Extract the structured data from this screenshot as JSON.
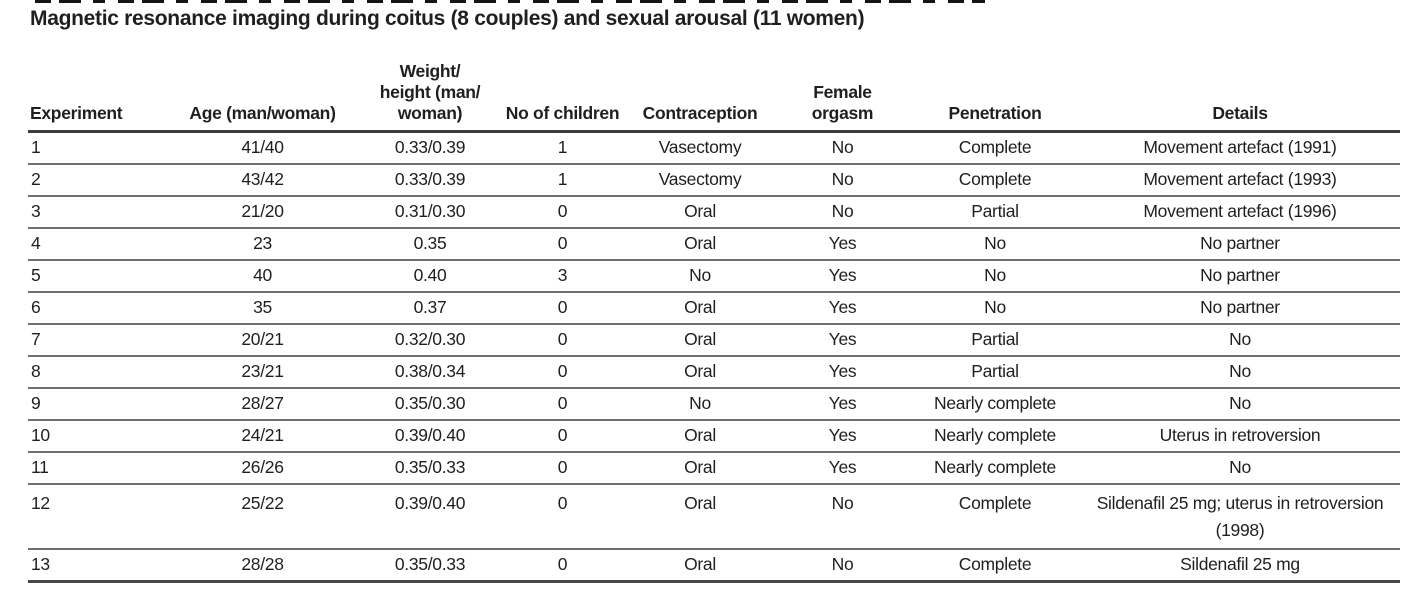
{
  "title": "Magnetic resonance imaging during coitus (8 couples) and sexual arousal (11 women)",
  "table": {
    "columns": [
      {
        "key": "experiment",
        "label": "Experiment"
      },
      {
        "key": "age",
        "label": "Age (man/woman)"
      },
      {
        "key": "weight_height",
        "label": "Weight/\nheight (man/\nwoman)"
      },
      {
        "key": "children",
        "label": "No of children"
      },
      {
        "key": "contraception",
        "label": "Contraception"
      },
      {
        "key": "orgasm",
        "label": "Female\norgasm"
      },
      {
        "key": "penetration",
        "label": "Penetration"
      },
      {
        "key": "details",
        "label": "Details"
      }
    ],
    "rows": [
      [
        "1",
        "41/40",
        "0.33/0.39",
        "1",
        "Vasectomy",
        "No",
        "Complete",
        "Movement artefact (1991)"
      ],
      [
        "2",
        "43/42",
        "0.33/0.39",
        "1",
        "Vasectomy",
        "No",
        "Complete",
        "Movement artefact (1993)"
      ],
      [
        "3",
        "21/20",
        "0.31/0.30",
        "0",
        "Oral",
        "No",
        "Partial",
        "Movement artefact (1996)"
      ],
      [
        "4",
        "23",
        "0.35",
        "0",
        "Oral",
        "Yes",
        "No",
        "No partner"
      ],
      [
        "5",
        "40",
        "0.40",
        "3",
        "No",
        "Yes",
        "No",
        "No partner"
      ],
      [
        "6",
        "35",
        "0.37",
        "0",
        "Oral",
        "Yes",
        "No",
        "No partner"
      ],
      [
        "7",
        "20/21",
        "0.32/0.30",
        "0",
        "Oral",
        "Yes",
        "Partial",
        "No"
      ],
      [
        "8",
        "23/21",
        "0.38/0.34",
        "0",
        "Oral",
        "Yes",
        "Partial",
        "No"
      ],
      [
        "9",
        "28/27",
        "0.35/0.30",
        "0",
        "No",
        "Yes",
        "Nearly complete",
        "No"
      ],
      [
        "10",
        "24/21",
        "0.39/0.40",
        "0",
        "Oral",
        "Yes",
        "Nearly complete",
        "Uterus in retroversion"
      ],
      [
        "11",
        "26/26",
        "0.35/0.33",
        "0",
        "Oral",
        "Yes",
        "Nearly complete",
        "No"
      ],
      [
        "12",
        "25/22",
        "0.39/0.40",
        "0",
        "Oral",
        "No",
        "Complete",
        "Sildenafil 25 mg; uterus in retroversion (1998)"
      ],
      [
        "13",
        "28/28",
        "0.35/0.33",
        "0",
        "Oral",
        "No",
        "Complete",
        "Sildenafil 25 mg"
      ]
    ]
  }
}
